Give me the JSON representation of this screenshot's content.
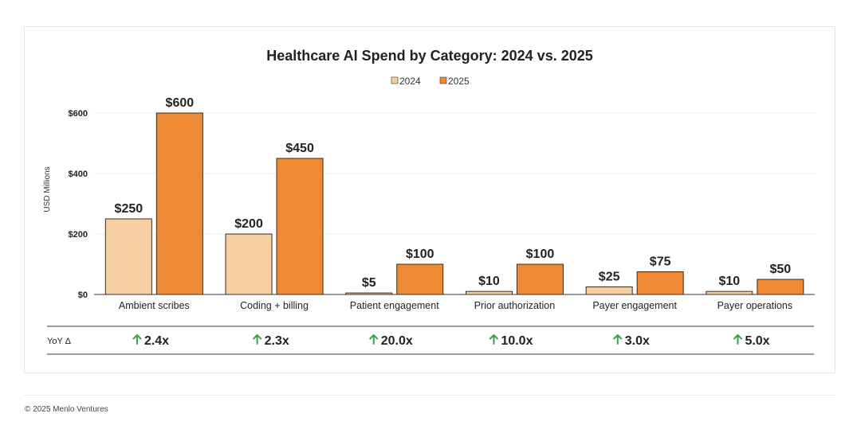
{
  "chart_data": {
    "type": "bar",
    "title": "Healthcare AI Spend by Category: 2024 vs. 2025",
    "ylabel": "USD Millions",
    "xlabel": "",
    "ylim": [
      0,
      600
    ],
    "yticks": [
      0,
      200,
      400,
      600
    ],
    "ytick_labels": [
      "$0",
      "$200",
      "$400",
      "$600"
    ],
    "grid": true,
    "legend_position": "top-center",
    "categories": [
      "Ambient scribes",
      "Coding + billing",
      "Patient engagement",
      "Prior authorization",
      "Payer engagement",
      "Payer operations"
    ],
    "series": [
      {
        "name": "2024",
        "color": "#f7cfa3",
        "values": [
          250,
          200,
          5,
          10,
          25,
          10
        ],
        "labels": [
          "$250",
          "$200",
          "$5",
          "$10",
          "$25",
          "$10"
        ]
      },
      {
        "name": "2025",
        "color": "#ef8a34",
        "values": [
          600,
          450,
          100,
          100,
          75,
          50
        ],
        "labels": [
          "$600",
          "$450",
          "$100",
          "$100",
          "$75",
          "$50"
        ]
      }
    ],
    "yoy": {
      "label": "YoY Δ",
      "arrow_color": "#3aa34a",
      "values": [
        "2.4x",
        "2.3x",
        "20.0x",
        "10.0x",
        "3.0x",
        "5.0x"
      ]
    }
  },
  "footer": "© 2025 Menlo Ventures"
}
